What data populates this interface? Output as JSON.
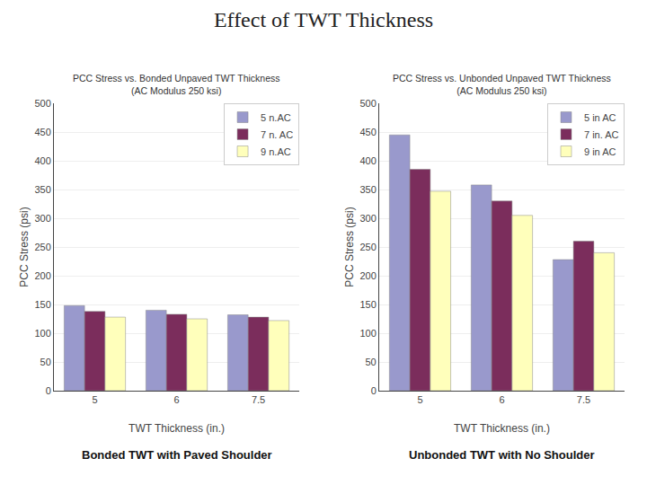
{
  "title": "Effect of TWT Thickness",
  "chart_data": [
    {
      "type": "bar",
      "title": "PCC Stress vs. Bonded Unpaved TWT Thickness\n(AC Modulus 250 ksi)",
      "subtitle": "Bonded TWT with Paved Shoulder",
      "x_label": "TWT Thickness (in.)",
      "y_label": "PCC Stress (psi)",
      "categories": [
        "5",
        "6",
        "7.5"
      ],
      "series": [
        {
          "name": "5 n.AC",
          "color": "#9999cc",
          "values": [
            148,
            140,
            132
          ]
        },
        {
          "name": "7 n. AC",
          "color": "#7b2d5c",
          "values": [
            138,
            133,
            128
          ]
        },
        {
          "name": "9 n.AC",
          "color": "#ffffbb",
          "values": [
            128,
            125,
            122
          ]
        }
      ],
      "ylim": [
        0,
        500
      ],
      "yticks": [
        0,
        50,
        100,
        150,
        200,
        250,
        300,
        350,
        400,
        450,
        500
      ],
      "grid": true,
      "legend": "upper right"
    },
    {
      "type": "bar",
      "title": "PCC Stress vs. Unbonded Unpaved TWT Thickness\n(AC Modulus 250 ksi)",
      "subtitle": "Unbonded TWT with No Shoulder",
      "x_label": "TWT Thickness (in.)",
      "y_label": "PCC Stress (psi)",
      "categories": [
        "5",
        "6",
        "7.5"
      ],
      "series": [
        {
          "name": "5 in AC",
          "color": "#9999cc",
          "values": [
            445,
            358,
            228
          ]
        },
        {
          "name": "7 in. AC",
          "color": "#7b2d5c",
          "values": [
            385,
            330,
            260
          ]
        },
        {
          "name": "9 in AC",
          "color": "#ffffbb",
          "values": [
            347,
            305,
            240
          ]
        }
      ],
      "ylim": [
        0,
        500
      ],
      "yticks": [
        0,
        50,
        100,
        150,
        200,
        250,
        300,
        350,
        400,
        450,
        500
      ],
      "grid": true,
      "legend": "upper right"
    }
  ]
}
